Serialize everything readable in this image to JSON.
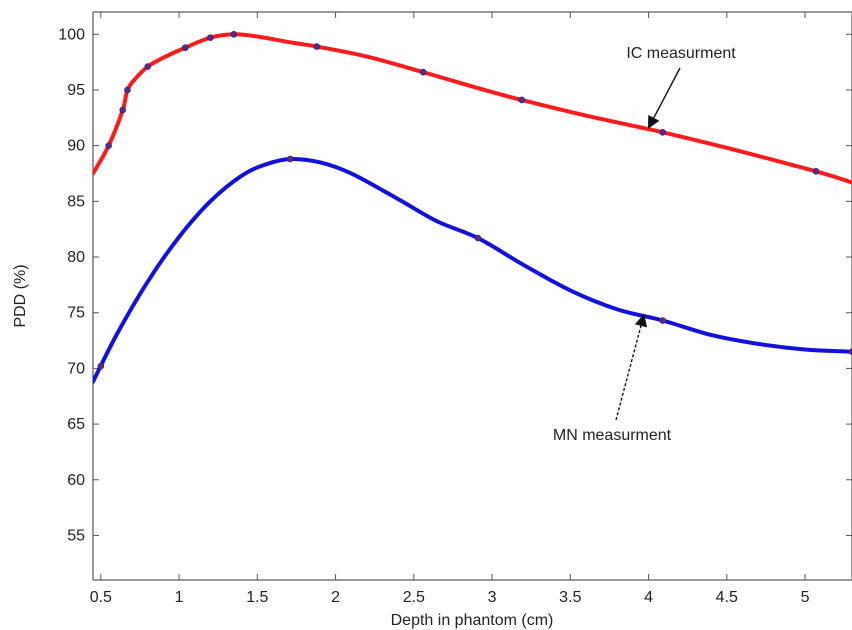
{
  "chart_data": {
    "type": "line",
    "title": "",
    "xlabel": "Depth in phantom (cm)",
    "ylabel": "PDD (%)",
    "xlim": [
      0.45,
      5.3
    ],
    "ylim": [
      51,
      102
    ],
    "x_ticks": [
      0.5,
      1,
      1.5,
      2,
      2.5,
      3,
      3.5,
      4,
      4.5,
      5
    ],
    "x_tick_labels": [
      "0.5",
      "1",
      "1.5",
      "2",
      "2.5",
      "3",
      "3.5",
      "4",
      "4.5",
      "5"
    ],
    "y_ticks": [
      55,
      60,
      65,
      70,
      75,
      80,
      85,
      90,
      95,
      100
    ],
    "y_tick_labels": [
      "55",
      "60",
      "65",
      "70",
      "75",
      "80",
      "85",
      "90",
      "95",
      "100"
    ],
    "grid": false,
    "series": [
      {
        "name": "IC measurment",
        "color": "#ff1a1a",
        "curve": [
          [
            0.45,
            87.5
          ],
          [
            0.55,
            90.0
          ],
          [
            0.64,
            93.2
          ],
          [
            0.67,
            95.0
          ],
          [
            0.72,
            96.0
          ],
          [
            0.8,
            97.1
          ],
          [
            0.9,
            97.9
          ],
          [
            1.04,
            98.8
          ],
          [
            1.2,
            99.7
          ],
          [
            1.35,
            100.0
          ],
          [
            1.5,
            99.8
          ],
          [
            1.7,
            99.3
          ],
          [
            1.88,
            98.9
          ],
          [
            2.2,
            98.0
          ],
          [
            2.56,
            96.6
          ],
          [
            2.9,
            95.2
          ],
          [
            3.19,
            94.1
          ],
          [
            3.6,
            92.7
          ],
          [
            4.09,
            91.2
          ],
          [
            4.5,
            89.8
          ],
          [
            5.07,
            87.7
          ],
          [
            5.3,
            86.7
          ]
        ],
        "markers": [
          [
            0.55,
            90.0
          ],
          [
            0.64,
            93.2
          ],
          [
            0.67,
            95.0
          ],
          [
            0.8,
            97.1
          ],
          [
            1.04,
            98.8
          ],
          [
            1.2,
            99.7
          ],
          [
            1.35,
            100.0
          ],
          [
            1.88,
            98.9
          ],
          [
            2.56,
            96.6
          ],
          [
            3.19,
            94.1
          ],
          [
            4.09,
            91.2
          ],
          [
            5.07,
            87.7
          ]
        ]
      },
      {
        "name": "MN measurment",
        "color": "#1010e0",
        "curve": [
          [
            0.45,
            68.8
          ],
          [
            0.6,
            73.0
          ],
          [
            0.8,
            77.8
          ],
          [
            1.0,
            81.8
          ],
          [
            1.2,
            85.0
          ],
          [
            1.4,
            87.3
          ],
          [
            1.55,
            88.3
          ],
          [
            1.71,
            88.8
          ],
          [
            1.9,
            88.5
          ],
          [
            2.1,
            87.5
          ],
          [
            2.4,
            85.2
          ],
          [
            2.65,
            83.2
          ],
          [
            2.91,
            81.7
          ],
          [
            3.2,
            79.3
          ],
          [
            3.5,
            77.0
          ],
          [
            3.8,
            75.3
          ],
          [
            4.09,
            74.3
          ],
          [
            4.4,
            73.0
          ],
          [
            4.7,
            72.2
          ],
          [
            5.0,
            71.7
          ],
          [
            5.3,
            71.5
          ]
        ],
        "markers": [
          [
            0.5,
            70.2
          ],
          [
            1.71,
            88.8
          ],
          [
            2.91,
            81.7
          ],
          [
            4.09,
            74.3
          ],
          [
            5.3,
            71.5
          ]
        ]
      }
    ],
    "annotations": [
      {
        "text": "IC measurment",
        "series": "IC measurment",
        "arrow_to": [
          4.0,
          91.6
        ]
      },
      {
        "text": "MN measurment",
        "series": "MN measurment",
        "arrow_to": [
          3.97,
          74.8
        ]
      }
    ]
  }
}
